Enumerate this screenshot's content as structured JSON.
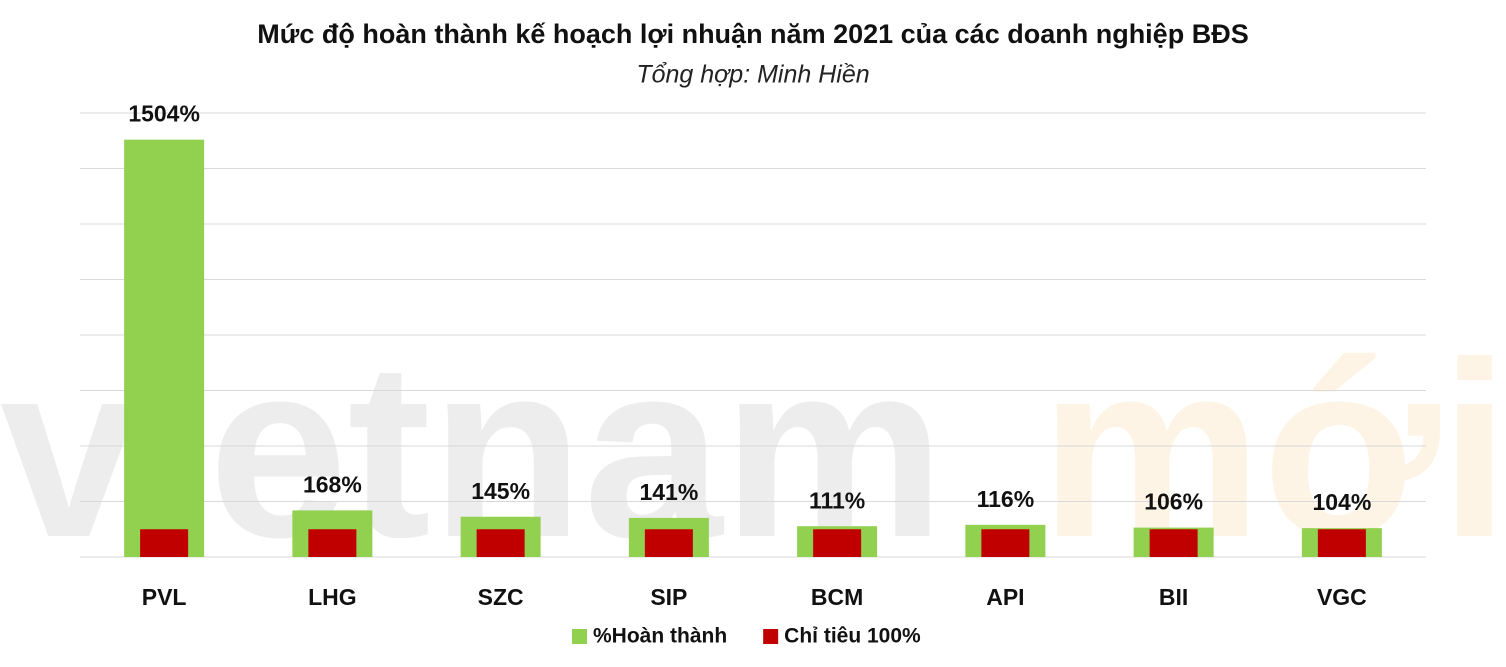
{
  "chart_data": {
    "type": "bar",
    "title": "Mức độ hoàn thành kế hoạch lợi nhuận năm 2021 của các doanh nghiệp BĐS",
    "subtitle": "Tổng hợp: Minh Hiền",
    "watermark": [
      "vietnam",
      "mới"
    ],
    "categories": [
      "PVL",
      "LHG",
      "SZC",
      "SIP",
      "BCM",
      "API",
      "BII",
      "VGC"
    ],
    "series": [
      {
        "name": "%Hoàn thành",
        "color": "#92d050",
        "values": [
          1504,
          168,
          145,
          141,
          111,
          116,
          106,
          104
        ],
        "value_labels": [
          "1504%",
          "168%",
          "145%",
          "141%",
          "111%",
          "116%",
          "106%",
          "104%"
        ]
      },
      {
        "name": "Chỉ tiêu 100%",
        "color": "#c00000",
        "values": [
          100,
          100,
          100,
          100,
          100,
          100,
          100,
          100
        ]
      }
    ],
    "ylim": [
      0,
      1600
    ],
    "yticks": [
      0,
      200,
      400,
      600,
      800,
      1000,
      1200,
      1400,
      1600
    ],
    "grid": true,
    "legend": "bottom"
  }
}
